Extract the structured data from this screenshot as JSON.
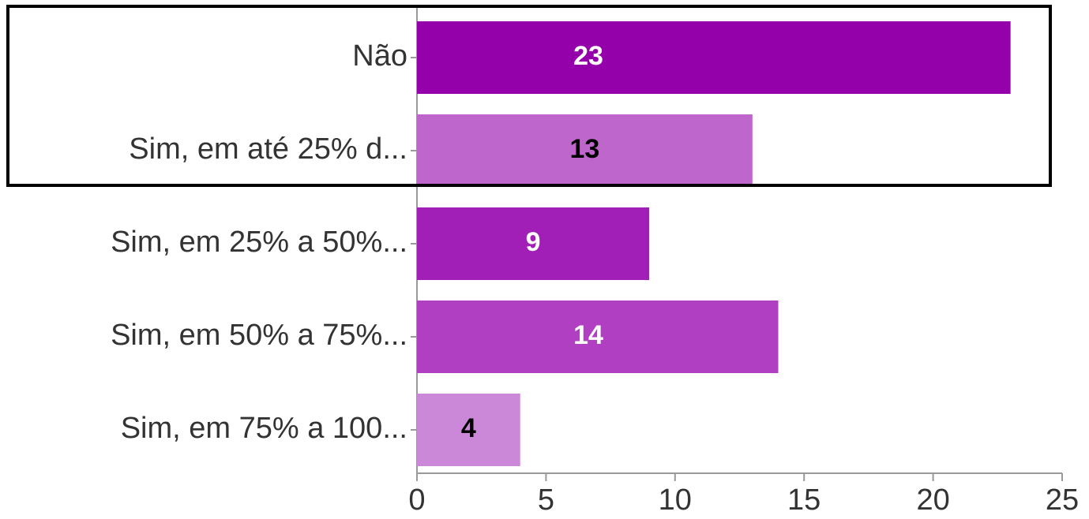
{
  "chart_data": {
    "type": "bar",
    "orientation": "horizontal",
    "categories": [
      "Não",
      "Sim, em até 25% d...",
      "Sim, em 25% a 50%...",
      "Sim, em 50% a 75%...",
      "Sim, em 75% a 100..."
    ],
    "values": [
      23,
      13,
      9,
      14,
      4
    ],
    "colors": [
      "#9400aa",
      "#bf66cc",
      "#a11fb7",
      "#b13fc2",
      "#cc88d8"
    ],
    "label_colors": [
      "#ffffff",
      "#000000",
      "#ffffff",
      "#ffffff",
      "#000000"
    ],
    "xlim": [
      0,
      25
    ],
    "xticks": [
      0,
      5,
      10,
      15,
      20,
      25
    ]
  }
}
